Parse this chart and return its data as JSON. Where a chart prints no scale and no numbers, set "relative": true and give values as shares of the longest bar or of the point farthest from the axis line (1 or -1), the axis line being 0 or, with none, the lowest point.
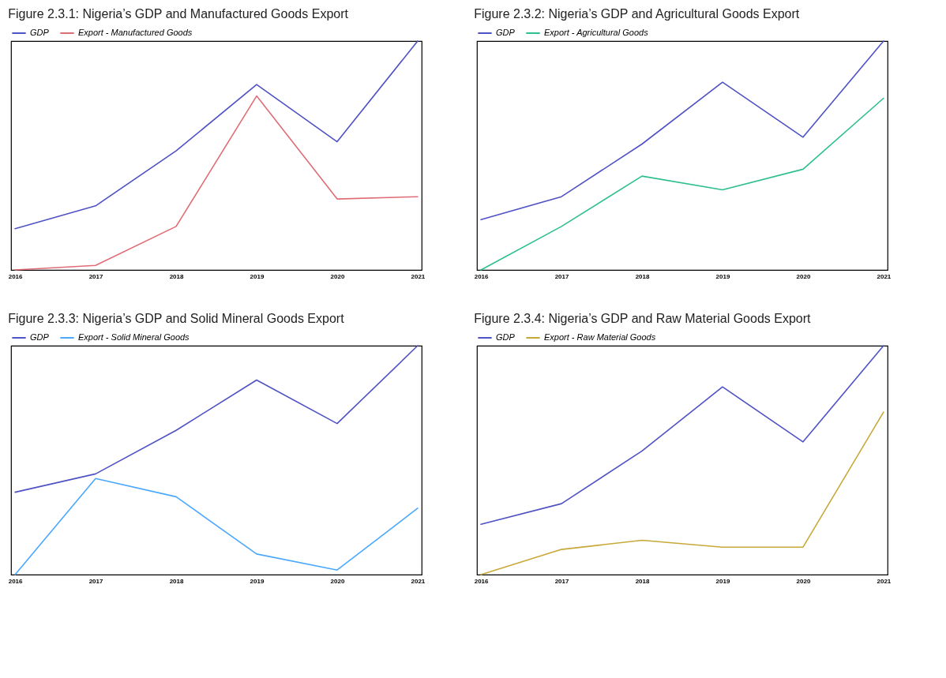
{
  "chart_data": [
    {
      "type": "line",
      "title": "Figure 2.3.1:  Nigeria’s GDP and Manufactured Goods Export",
      "categories": [
        "2016",
        "2017",
        "2018",
        "2019",
        "2020",
        "2021"
      ],
      "relative": true,
      "legend": "top left",
      "series": [
        {
          "name": "GDP",
          "color": "#4f52c4",
          "values": [
            0.18,
            0.28,
            0.52,
            0.81,
            0.56,
            1
          ]
        },
        {
          "name": "Export - Manufactured Goods",
          "color": "#e06c75",
          "values": [
            0,
            0.02,
            0.19,
            0.76,
            0.31,
            0.32
          ]
        }
      ]
    },
    {
      "type": "line",
      "title": "Figure 2.3.2: Nigeria’s GDP and Agricultural Goods Export",
      "categories": [
        "2016",
        "2017",
        "2018",
        "2019",
        "2020",
        "2021"
      ],
      "relative": true,
      "legend": "top left",
      "series": [
        {
          "name": "GDP",
          "color": "#4f52c4",
          "values": [
            0.22,
            0.32,
            0.55,
            0.82,
            0.58,
            1
          ]
        },
        {
          "name": "Export - Agricultural Goods",
          "color": "#2dbf8f",
          "values": [
            0,
            0.19,
            0.41,
            0.35,
            0.44,
            0.75
          ]
        }
      ]
    },
    {
      "type": "line",
      "title": "Figure 2.3.3: Nigeria’s GDP and Solid Mineral Goods Export",
      "categories": [
        "2016",
        "2017",
        "2018",
        "2019",
        "2020",
        "2021"
      ],
      "relative": true,
      "legend": "top left",
      "series": [
        {
          "name": "GDP",
          "color": "#4f52c4",
          "values": [
            0.36,
            0.44,
            0.63,
            0.85,
            0.66,
            1
          ]
        },
        {
          "name": "Export - Solid Mineral Goods",
          "color": "#4aa8ff",
          "values": [
            0,
            0.42,
            0.34,
            0.09,
            0.02,
            0.29
          ]
        }
      ]
    },
    {
      "type": "line",
      "title": "Figure 2.3.4: Nigeria’s GDP and Raw Material Goods Export",
      "categories": [
        "2016",
        "2017",
        "2018",
        "2019",
        "2020",
        "2021"
      ],
      "relative": true,
      "legend": "top left",
      "series": [
        {
          "name": "GDP",
          "color": "#4f52c4",
          "values": [
            0.22,
            0.31,
            0.54,
            0.82,
            0.58,
            1
          ]
        },
        {
          "name": "Export - Raw Material Goods",
          "color": "#c8a838",
          "values": [
            0,
            0.11,
            0.15,
            0.12,
            0.12,
            0.71
          ]
        }
      ]
    }
  ]
}
